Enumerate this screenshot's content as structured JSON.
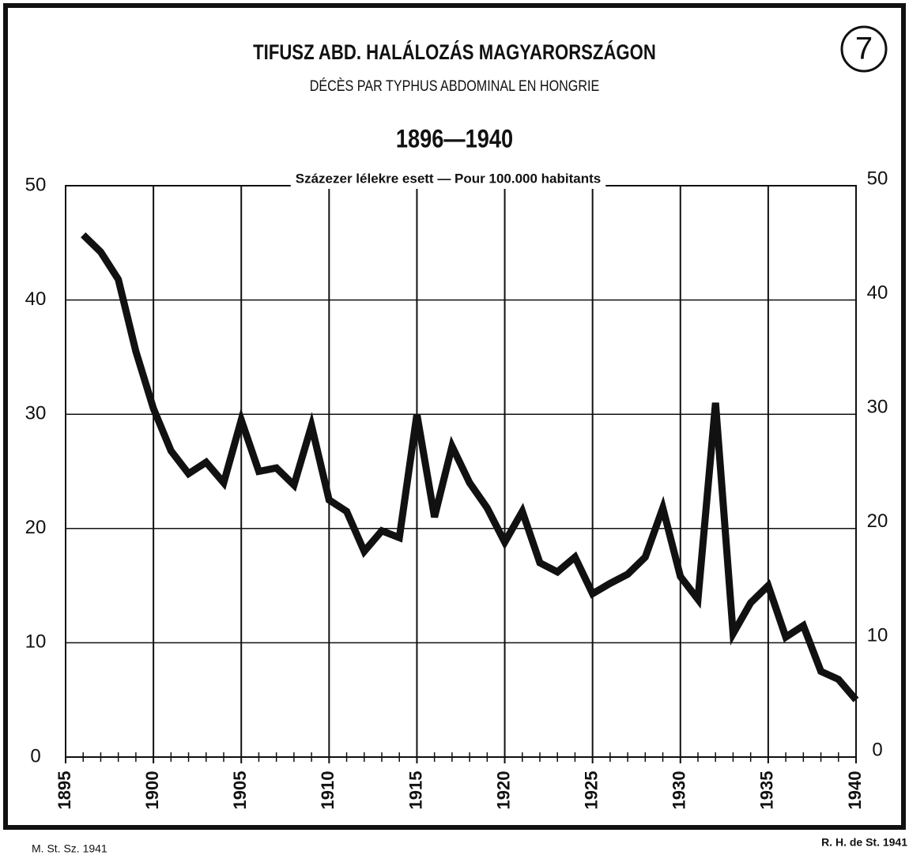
{
  "chart_data": {
    "type": "line",
    "title": "TIFUSZ ABD. HALÁLOZÁS MAGYARORSZÁGON",
    "subtitle": "DÉCÈS PAR TYPHUS ABDOMINAL EN HONGRIE",
    "period": "1896—1940",
    "badge": "7",
    "y_label": "Százezer lélekre esett — Pour 100.000 habitants",
    "source_left": "M. St. Sz. 1941",
    "source_right": "R. H. de St. 1941",
    "x": [
      1896,
      1897,
      1898,
      1899,
      1900,
      1901,
      1902,
      1903,
      1904,
      1905,
      1906,
      1907,
      1908,
      1909,
      1910,
      1911,
      1912,
      1913,
      1914,
      1915,
      1916,
      1917,
      1918,
      1919,
      1920,
      1921,
      1922,
      1923,
      1924,
      1925,
      1926,
      1927,
      1928,
      1929,
      1930,
      1931,
      1932,
      1933,
      1934,
      1935,
      1936,
      1937,
      1938,
      1939,
      1940
    ],
    "values": [
      45.7,
      44.2,
      41.8,
      35.5,
      30.5,
      26.8,
      24.8,
      25.8,
      24.0,
      29.5,
      25.0,
      25.3,
      23.8,
      29.0,
      22.5,
      21.5,
      18.0,
      19.8,
      19.2,
      30.0,
      21.0,
      27.2,
      24.0,
      21.8,
      18.8,
      21.5,
      17.0,
      16.2,
      17.5,
      14.3,
      15.2,
      16.0,
      17.5,
      21.8,
      15.8,
      13.8,
      31.0,
      10.8,
      13.5,
      15.0,
      10.5,
      11.5,
      7.5,
      6.8,
      5.0
    ],
    "color": "#111111",
    "xlim": [
      1895,
      1940
    ],
    "xticks": [
      1895,
      1900,
      1905,
      1910,
      1915,
      1920,
      1925,
      1930,
      1935,
      1940
    ],
    "ylim": [
      0,
      50
    ],
    "yticks": [
      0,
      10,
      20,
      30,
      40,
      50
    ],
    "grid": true
  }
}
